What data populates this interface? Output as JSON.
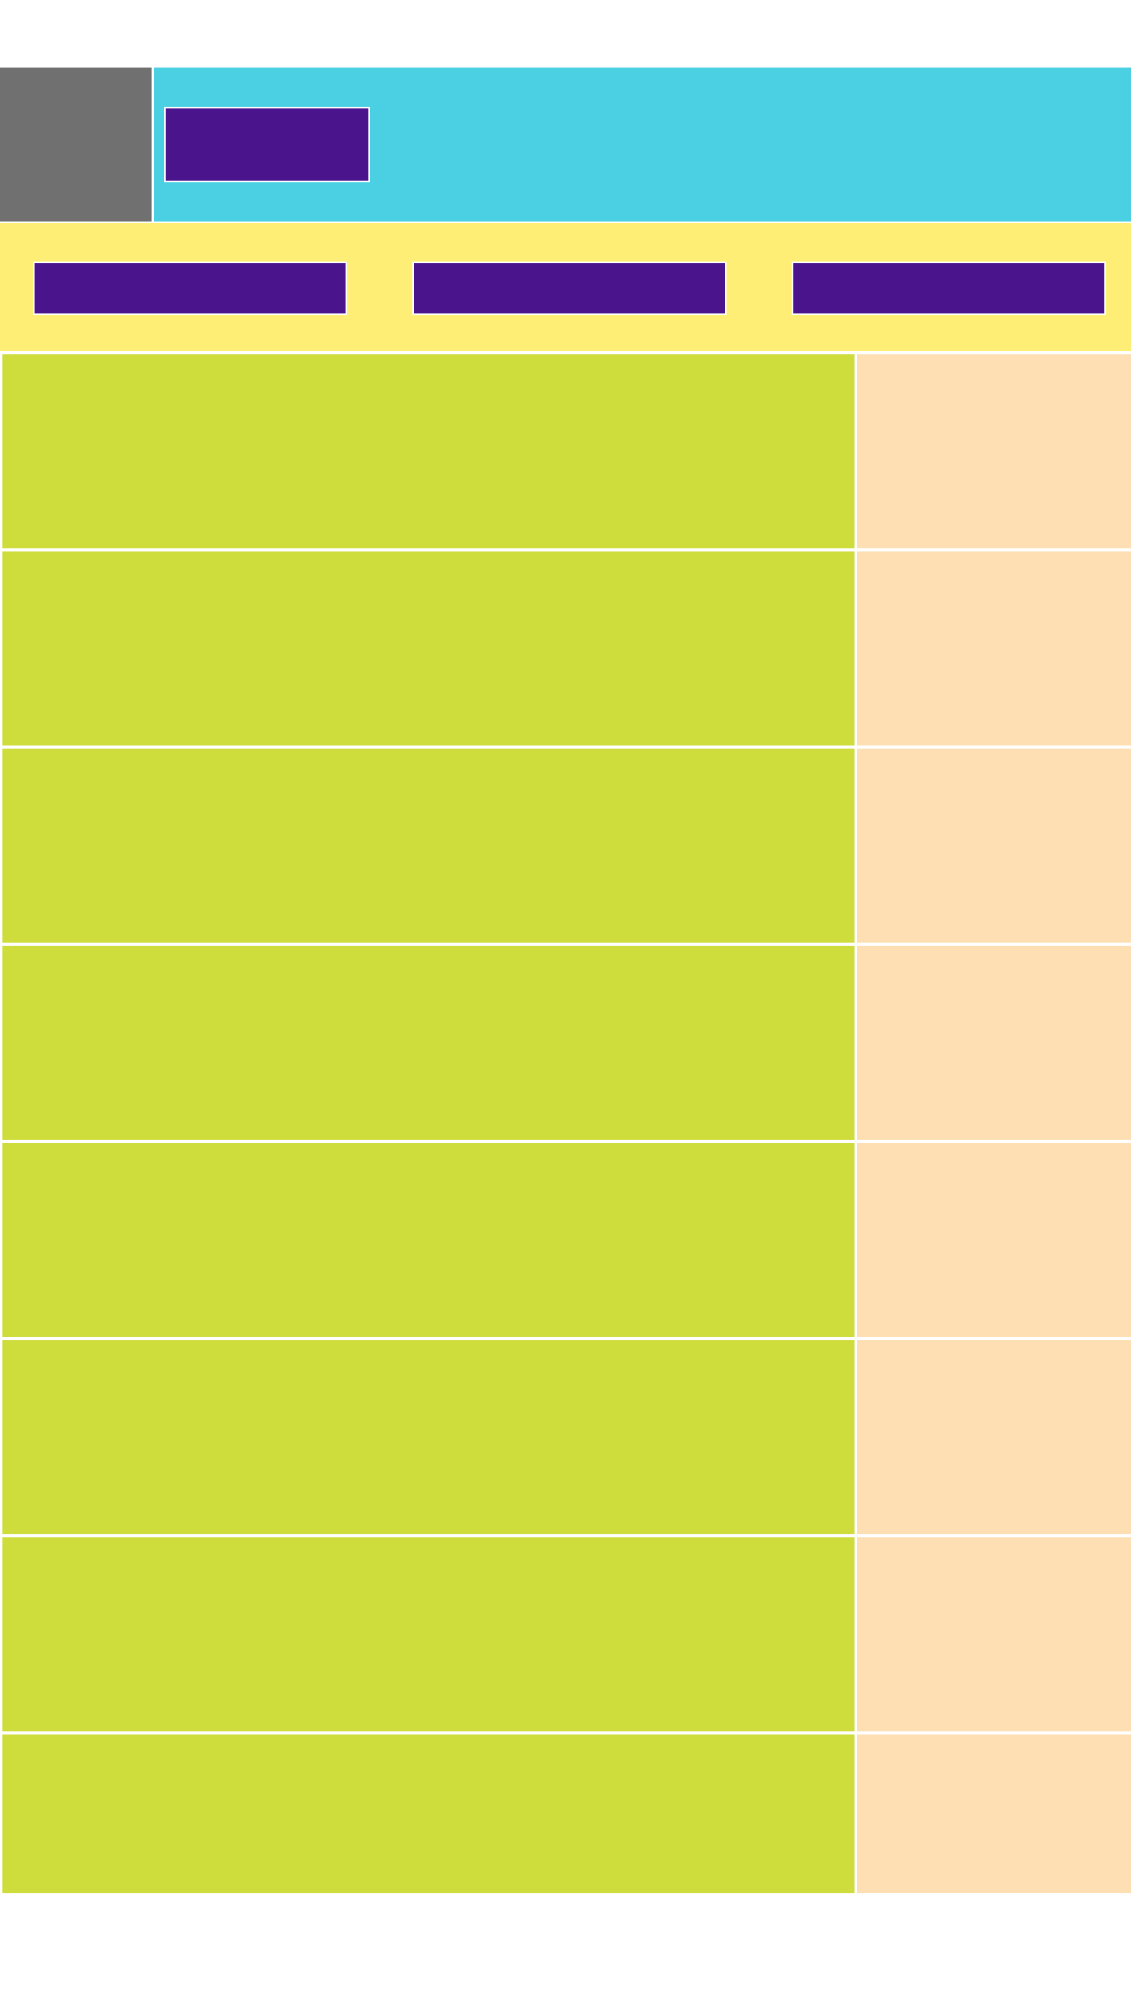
{
  "colors": {
    "logo": "#707070",
    "header": "#4BCFE2",
    "button": "#4A148C",
    "nav": "#FEEE75",
    "row_main": "#CEDC3C",
    "row_side": "#FDDFB3",
    "background": "#FFFFFF"
  },
  "header": {
    "button_label": ""
  },
  "nav": {
    "buttons": [
      {
        "label": ""
      },
      {
        "label": ""
      },
      {
        "label": ""
      }
    ]
  },
  "rows": [
    {
      "main": "",
      "side": ""
    },
    {
      "main": "",
      "side": ""
    },
    {
      "main": "",
      "side": ""
    },
    {
      "main": "",
      "side": ""
    },
    {
      "main": "",
      "side": ""
    },
    {
      "main": "",
      "side": ""
    },
    {
      "main": "",
      "side": ""
    },
    {
      "main": "",
      "side": ""
    }
  ]
}
